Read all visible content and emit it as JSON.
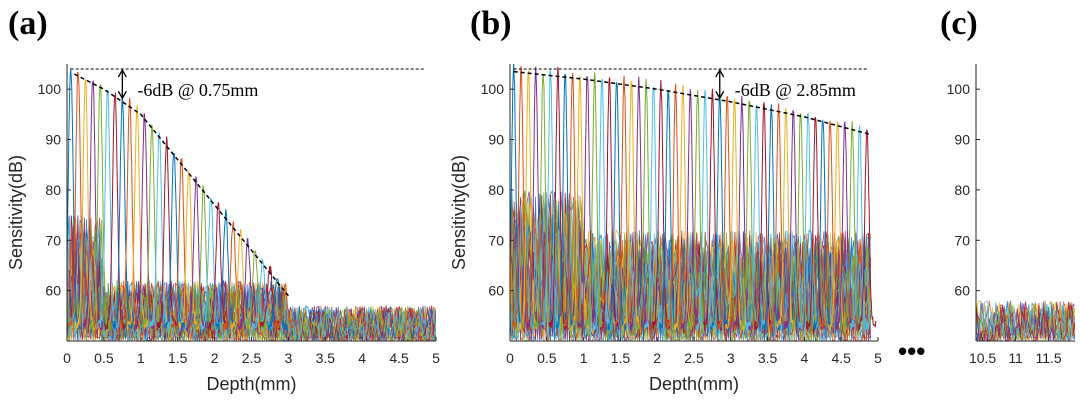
{
  "chart_data": [
    {
      "type": "line",
      "panel_label": "(a)",
      "xlabel": "Depth(mm)",
      "ylabel": "Sensitivity(dB)",
      "xlim": [
        0,
        5
      ],
      "ylim": [
        50,
        105
      ],
      "xticks": [
        "0",
        "0.5",
        "1",
        "1.5",
        "2",
        "2.5",
        "3",
        "3.5",
        "4",
        "4.5",
        "5"
      ],
      "yticks": [
        "60",
        "70",
        "80",
        "90",
        "100"
      ],
      "annotation": "-6dB @ 0.75mm",
      "reference_level_db": 104,
      "rolloff_point": {
        "depth_mm": 0.75,
        "db": 98
      },
      "peak_envelope": {
        "x": [
          0.1,
          0.5,
          1.0,
          1.5,
          2.0,
          2.5,
          3.0
        ],
        "y": [
          103,
          100,
          95,
          86,
          77,
          68,
          59
        ]
      },
      "peak_spacing_mm": 0.1,
      "noise_floor_db": [
        50,
        60
      ],
      "grid": false
    },
    {
      "type": "line",
      "panel_label": "(b)",
      "xlabel": "Depth(mm)",
      "ylabel": "Sensitivity(dB)",
      "xlim": [
        0,
        5
      ],
      "ylim": [
        50,
        105
      ],
      "xticks": [
        "0",
        "0.5",
        "1",
        "1.5",
        "2",
        "2.5",
        "3",
        "3.5",
        "4",
        "4.5",
        "5"
      ],
      "yticks": [
        "60",
        "70",
        "80",
        "90",
        "100"
      ],
      "annotation": "-6dB @ 2.85mm",
      "reference_level_db": 104,
      "rolloff_point": {
        "depth_mm": 2.85,
        "db": 98
      },
      "peak_envelope": {
        "x": [
          0.05,
          1.0,
          2.0,
          3.0,
          4.0,
          4.9
        ],
        "y": [
          103.5,
          102,
          100,
          97.5,
          94.5,
          91
        ]
      },
      "peak_spacing_mm": 0.1,
      "noise_floor_db": [
        50,
        75
      ],
      "grid": false
    },
    {
      "type": "line",
      "panel_label": "(c)",
      "xlabel": "",
      "ylabel": "",
      "xlim": [
        10.4,
        11.9
      ],
      "ylim": [
        50,
        105
      ],
      "xticks": [
        "10.5",
        "11",
        "11.5"
      ],
      "yticks": [
        "60",
        "70",
        "80",
        "90",
        "100"
      ],
      "noise_floor_db": [
        50,
        58
      ],
      "grid": false
    }
  ],
  "ellipsis": "•••",
  "series_colors": [
    "#0072BD",
    "#D95319",
    "#EDB120",
    "#7E2F8E",
    "#77AC30",
    "#4DBEEE",
    "#A2142F"
  ]
}
